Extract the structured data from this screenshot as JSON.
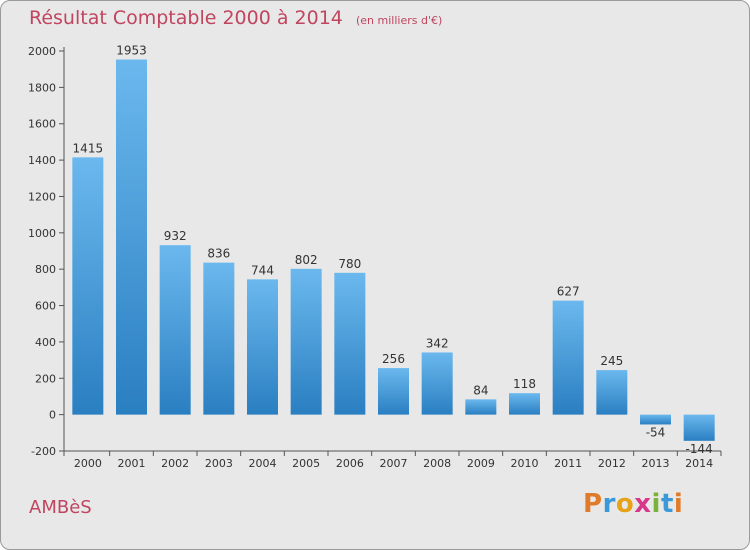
{
  "title": "Résultat Comptable 2000 à 2014",
  "unit": "(en milliers d'€)",
  "commune": "AMBèS",
  "logo": {
    "text": "Proxiti",
    "letter_colors": [
      "#e07b2a",
      "#3a9ad9",
      "#e6a21a",
      "#d8388a",
      "#7ab33a",
      "#3a9ad9",
      "#e07b2a"
    ]
  },
  "colors": {
    "title": "#c0455f",
    "bar_top": "#6bb8ee",
    "bar_bottom": "#2a7fc1",
    "background": "#e8e8e8"
  },
  "chart_data": {
    "type": "bar",
    "title": "Résultat Comptable 2000 à 2014",
    "xlabel": "",
    "ylabel": "",
    "categories": [
      "2000",
      "2001",
      "2002",
      "2003",
      "2004",
      "2005",
      "2006",
      "2007",
      "2008",
      "2009",
      "2010",
      "2011",
      "2012",
      "2013",
      "2014"
    ],
    "values": [
      1415,
      1953,
      932,
      836,
      744,
      802,
      780,
      256,
      342,
      84,
      118,
      627,
      245,
      -54,
      -144
    ],
    "ylim": [
      -200,
      2000
    ],
    "yticks": [
      -200,
      0,
      200,
      400,
      600,
      800,
      1000,
      1200,
      1400,
      1600,
      1800,
      2000
    ],
    "grid": false,
    "legend": "none"
  }
}
